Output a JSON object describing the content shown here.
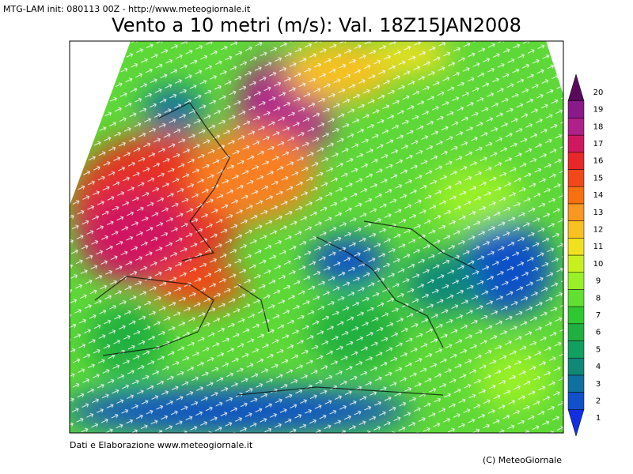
{
  "header": "MTG-LAM init: 080113 00Z - http://www.meteogiornale.it",
  "title": "Vento a 10 metri (m/s): Val. 18Z15JAN2008",
  "colorbar": {
    "labels": [
      1,
      2,
      3,
      4,
      5,
      6,
      7,
      8,
      9,
      10,
      11,
      12,
      13,
      14,
      15,
      16,
      17,
      18,
      19,
      20
    ],
    "colors": [
      "#1030e0",
      "#1050c8",
      "#1070a0",
      "#108878",
      "#10a060",
      "#20b040",
      "#30c830",
      "#60e030",
      "#98f028",
      "#c8f020",
      "#f0e020",
      "#f8c020",
      "#f89820",
      "#f87010",
      "#f04818",
      "#e82828",
      "#d01860",
      "#b0208a",
      "#8a1a8a",
      "#5a0a5a"
    ]
  },
  "footer": {
    "credit": "Dati e Elaborazione www.meteogiornale.it",
    "copyright": "(C) MeteoGiornale"
  }
}
